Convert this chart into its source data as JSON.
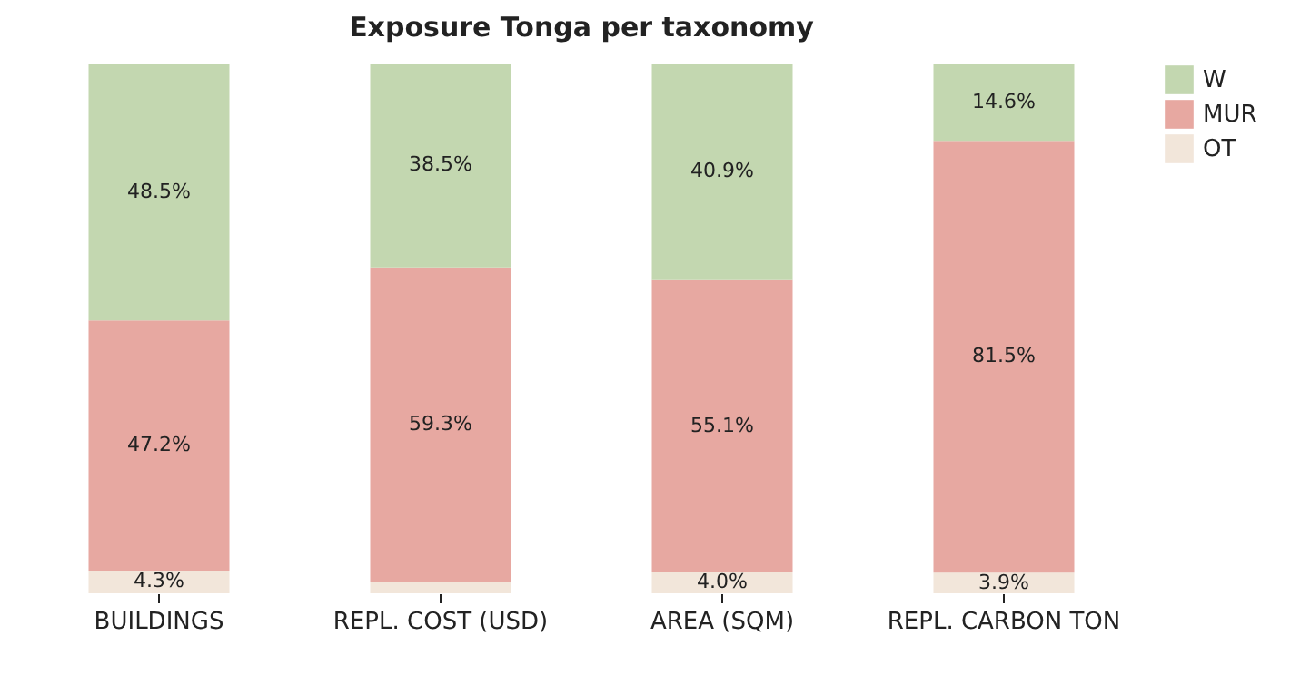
{
  "chart_data": {
    "type": "bar",
    "title": "Exposure Tonga per taxonomy",
    "categories": [
      "BUILDINGS",
      "REPL. COST (USD)",
      "AREA (SQM)",
      "REPL. CARBON TON"
    ],
    "stacked": true,
    "legend": "top right",
    "grid": false,
    "series": [
      {
        "name": "OT",
        "color": "#f2e6da",
        "values": [
          4.3,
          2.2,
          4.0,
          3.9
        ],
        "value_labels": [
          "4.3%",
          null,
          "4.0%",
          "3.9%"
        ]
      },
      {
        "name": "MUR",
        "color": "#e7a8a1",
        "values": [
          47.2,
          59.3,
          55.1,
          81.5
        ],
        "value_labels": [
          "47.2%",
          "59.3%",
          "55.1%",
          "81.5%"
        ]
      },
      {
        "name": "W",
        "color": "#c3d7b0",
        "values": [
          48.5,
          38.5,
          40.9,
          14.6
        ],
        "value_labels": [
          "48.5%",
          "38.5%",
          "40.9%",
          "14.6%"
        ]
      }
    ]
  }
}
